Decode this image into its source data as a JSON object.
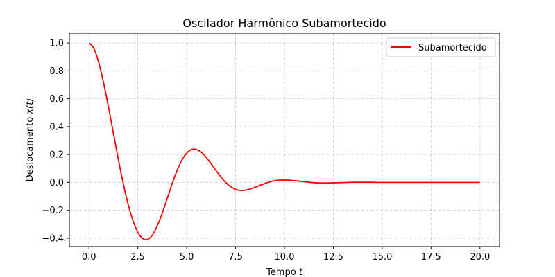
{
  "chart_data": {
    "type": "line",
    "title": "Oscilador Harmônico Subamortecido",
    "xlabel": "Tempo",
    "xlabel_var": "t",
    "ylabel": "Deslocamento",
    "ylabel_var": "x(t)",
    "xlim": [
      -1.0,
      21.0
    ],
    "ylim": [
      -0.46,
      1.07
    ],
    "xticks": [
      0.0,
      2.5,
      5.0,
      7.5,
      10.0,
      12.5,
      15.0,
      17.5,
      20.0
    ],
    "xtick_labels": [
      "0.0",
      "2.5",
      "5.0",
      "7.5",
      "10.0",
      "12.5",
      "15.0",
      "17.5",
      "20.0"
    ],
    "yticks": [
      -0.4,
      -0.2,
      0.0,
      0.2,
      0.4,
      0.6,
      0.8,
      1.0
    ],
    "ytick_labels": [
      "−0.4",
      "−0.2",
      "0.0",
      "0.2",
      "0.4",
      "0.6",
      "0.8",
      "1.0"
    ],
    "grid": true,
    "legend_position": "top-right",
    "series": [
      {
        "name": "Subamortecido",
        "color": "#ff0000",
        "x": [
          0.0,
          0.25,
          0.5,
          0.75,
          1.0,
          1.25,
          1.5,
          1.75,
          2.0,
          2.25,
          2.5,
          2.75,
          3.0,
          3.25,
          3.5,
          3.75,
          4.0,
          4.25,
          4.5,
          4.75,
          5.0,
          5.25,
          5.5,
          5.75,
          6.0,
          6.25,
          6.5,
          6.75,
          7.0,
          7.25,
          7.5,
          7.75,
          8.0,
          8.25,
          8.5,
          8.75,
          9.0,
          9.25,
          9.5,
          9.75,
          10.0,
          10.25,
          10.5,
          10.75,
          11.0,
          11.25,
          11.5,
          11.75,
          12.0,
          12.25,
          12.5,
          12.75,
          13.0,
          13.25,
          13.5,
          13.75,
          14.0,
          14.25,
          14.5,
          14.75,
          15.0,
          15.25,
          15.5,
          15.75,
          16.0,
          16.25,
          16.5,
          16.75,
          17.0,
          17.25,
          17.5,
          17.75,
          18.0,
          18.25,
          18.5,
          18.75,
          19.0,
          19.25,
          19.5,
          19.75,
          20.0
        ],
        "y": [
          1.0,
          0.962,
          0.861,
          0.714,
          0.54,
          0.353,
          0.168,
          -0.004,
          -0.154,
          -0.273,
          -0.357,
          -0.402,
          -0.409,
          -0.377,
          -0.31,
          -0.22,
          -0.117,
          -0.012,
          0.083,
          0.159,
          0.21,
          0.236,
          0.236,
          0.216,
          0.18,
          0.134,
          0.085,
          0.039,
          -0.001,
          -0.031,
          -0.05,
          -0.058,
          -0.056,
          -0.047,
          -0.035,
          -0.021,
          -0.008,
          0.004,
          0.012,
          0.016,
          0.017,
          0.016,
          0.013,
          0.009,
          0.005,
          0.001,
          -0.002,
          -0.004,
          -0.004,
          -0.004,
          -0.003,
          -0.002,
          -0.001,
          0.0,
          0.001,
          0.001,
          0.001,
          0.001,
          0.001,
          0.0,
          0.0,
          0.0,
          0.0,
          0.0,
          0.0,
          0.0,
          0.0,
          0.0,
          0.0,
          0.0,
          0.0,
          0.0,
          0.0,
          0.0,
          0.0,
          0.0,
          0.0,
          0.0,
          0.0,
          0.0,
          0.0
        ]
      }
    ]
  }
}
